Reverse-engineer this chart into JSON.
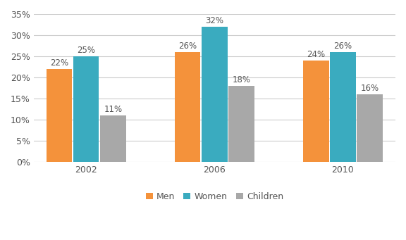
{
  "years": [
    "2002",
    "2006",
    "2010"
  ],
  "categories": [
    "Men",
    "Women",
    "Children"
  ],
  "values": {
    "Men": [
      22,
      26,
      24
    ],
    "Women": [
      25,
      32,
      26
    ],
    "Children": [
      11,
      18,
      16
    ]
  },
  "colors": {
    "Men": "#F4923B",
    "Women": "#3AABBF",
    "Children": "#A8A8A8"
  },
  "ylim": [
    0,
    35
  ],
  "yticks": [
    0,
    5,
    10,
    15,
    20,
    25,
    30,
    35
  ],
  "bar_width": 0.22,
  "background_color": "#FFFFFF",
  "grid_color": "#CCCCCC",
  "label_fontsize": 8.5,
  "tick_fontsize": 9,
  "legend_fontsize": 9
}
